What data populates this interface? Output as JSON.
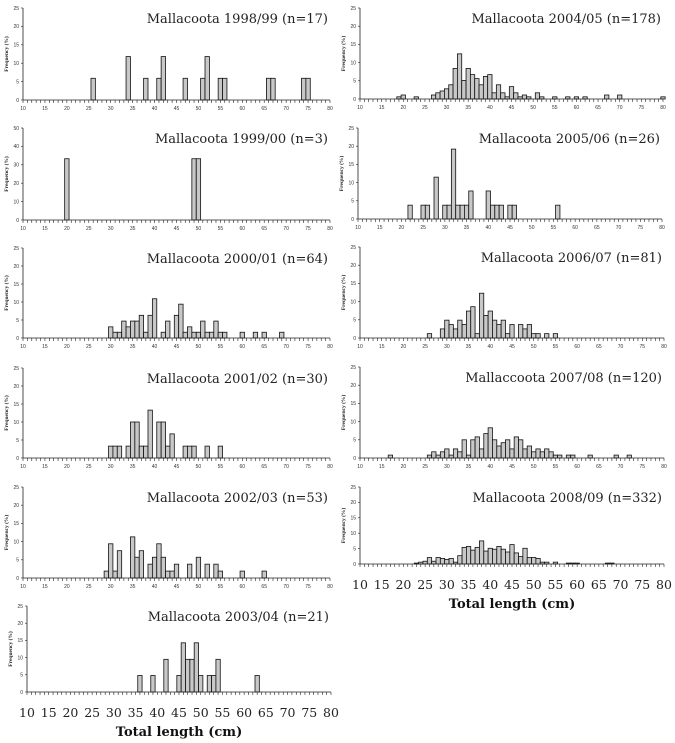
{
  "chart_data": [
    {
      "type": "bar",
      "title": "Mallacoota 1998/99 (n=17)",
      "ylabel": "Frequency (%)",
      "xlabel": "",
      "ylim": [
        0,
        25
      ],
      "yticks": [
        0,
        5,
        10,
        15,
        20,
        25
      ],
      "xlim": [
        10,
        80
      ],
      "xticks": [
        10,
        15,
        20,
        25,
        30,
        35,
        40,
        45,
        50,
        55,
        60,
        65,
        70,
        75,
        80
      ],
      "grid": false,
      "x": [
        26,
        34,
        38,
        41,
        42,
        47,
        51,
        52,
        55,
        56,
        66,
        67,
        74,
        75
      ],
      "values": [
        5.9,
        11.8,
        5.9,
        5.9,
        11.8,
        5.9,
        5.9,
        11.8,
        5.9,
        5.9,
        5.9,
        5.9,
        5.9,
        5.9
      ]
    },
    {
      "type": "bar",
      "title": "Mallacoota 1999/00 (n=3)",
      "ylabel": "Frequency (%)",
      "xlabel": "",
      "ylim": [
        0,
        50
      ],
      "yticks": [
        0,
        10,
        20,
        30,
        40,
        50
      ],
      "xlim": [
        10,
        80
      ],
      "xticks": [
        10,
        15,
        20,
        25,
        30,
        35,
        40,
        45,
        50,
        55,
        60,
        65,
        70,
        75,
        80
      ],
      "grid": false,
      "x": [
        20,
        49,
        50
      ],
      "values": [
        33.3,
        33.3,
        33.3
      ]
    },
    {
      "type": "bar",
      "title": "Mallacoota 2000/01 (n=64)",
      "ylabel": "Frequency (%)",
      "xlabel": "",
      "ylim": [
        0,
        25
      ],
      "yticks": [
        0,
        5,
        10,
        15,
        20,
        25
      ],
      "xlim": [
        10,
        80
      ],
      "xticks": [
        10,
        15,
        20,
        25,
        30,
        35,
        40,
        45,
        50,
        55,
        60,
        65,
        70,
        75,
        80
      ],
      "grid": false,
      "x": [
        30,
        31,
        32,
        33,
        34,
        35,
        36,
        37,
        38,
        39,
        40,
        42,
        43,
        45,
        46,
        47,
        48,
        49,
        50,
        51,
        52,
        53,
        54,
        55,
        56,
        60,
        63,
        65,
        69
      ],
      "values": [
        3.1,
        1.6,
        1.6,
        4.7,
        3.1,
        4.7,
        4.7,
        6.3,
        1.6,
        6.3,
        10.9,
        1.6,
        4.7,
        6.3,
        9.4,
        1.6,
        3.1,
        1.6,
        1.6,
        4.7,
        1.6,
        1.6,
        4.7,
        1.6,
        1.6,
        1.6,
        1.6,
        1.6,
        1.6
      ]
    },
    {
      "type": "bar",
      "title": "Mallacoota 2001/02 (n=30)",
      "ylabel": "Frequency (%)",
      "xlabel": "",
      "ylim": [
        0,
        25
      ],
      "yticks": [
        0,
        5,
        10,
        15,
        20,
        25
      ],
      "xlim": [
        10,
        80
      ],
      "xticks": [
        10,
        15,
        20,
        25,
        30,
        35,
        40,
        45,
        50,
        55,
        60,
        65,
        70,
        75,
        80
      ],
      "grid": false,
      "x": [
        30,
        31,
        32,
        34,
        35,
        36,
        37,
        38,
        39,
        41,
        42,
        43,
        44,
        47,
        48,
        49,
        52,
        55
      ],
      "values": [
        3.3,
        3.3,
        3.3,
        3.3,
        10,
        10,
        3.3,
        3.3,
        13.3,
        10,
        10,
        3.3,
        6.7,
        3.3,
        3.3,
        3.3,
        3.3,
        3.3
      ]
    },
    {
      "type": "bar",
      "title": "Mallacoota 2002/03 (n=53)",
      "ylabel": "Frequency (%)",
      "xlabel": "",
      "ylim": [
        0,
        25
      ],
      "yticks": [
        0,
        5,
        10,
        15,
        20,
        25
      ],
      "xlim": [
        10,
        80
      ],
      "xticks": [
        10,
        15,
        20,
        25,
        30,
        35,
        40,
        45,
        50,
        55,
        60,
        65,
        70,
        75,
        80
      ],
      "grid": false,
      "x": [
        29,
        30,
        31,
        32,
        35,
        36,
        37,
        39,
        40,
        41,
        42,
        43,
        44,
        45,
        48,
        50,
        52,
        54,
        55,
        60,
        65
      ],
      "values": [
        1.9,
        9.4,
        1.9,
        7.5,
        11.3,
        5.7,
        7.5,
        3.8,
        5.7,
        9.4,
        5.7,
        1.9,
        1.9,
        3.8,
        3.8,
        5.7,
        3.8,
        3.8,
        1.9,
        1.9,
        1.9
      ]
    },
    {
      "type": "bar",
      "title": "Mallacoota 2003/04 (n=21)",
      "ylabel": "Frequency (%)",
      "xlabel": "Total length (cm)",
      "ylim": [
        0,
        25
      ],
      "yticks": [
        0,
        5,
        10,
        15,
        20,
        25
      ],
      "xlim": [
        10,
        80
      ],
      "xticks": [
        10,
        15,
        20,
        25,
        30,
        35,
        40,
        45,
        50,
        55,
        60,
        65,
        70,
        75,
        80
      ],
      "grid": false,
      "x": [
        36,
        39,
        42,
        45,
        46,
        47,
        48,
        49,
        50,
        52,
        53,
        54,
        63
      ],
      "values": [
        4.8,
        4.8,
        9.5,
        4.8,
        14.3,
        9.5,
        9.5,
        14.3,
        4.8,
        4.8,
        4.8,
        9.5,
        4.8
      ]
    },
    {
      "type": "bar",
      "title": "Mallacoota 2004/05 (n=178)",
      "ylabel": "Frequency (%)",
      "xlabel": "",
      "ylim": [
        0,
        25
      ],
      "yticks": [
        0,
        5,
        10,
        15,
        20,
        25
      ],
      "xlim": [
        10,
        80
      ],
      "xticks": [
        10,
        15,
        20,
        25,
        30,
        35,
        40,
        45,
        50,
        55,
        60,
        65,
        70,
        75,
        80
      ],
      "grid": false,
      "x": [
        19,
        20,
        23,
        27,
        28,
        29,
        30,
        31,
        32,
        33,
        34,
        35,
        36,
        37,
        38,
        39,
        40,
        41,
        42,
        43,
        44,
        45,
        46,
        47,
        48,
        49,
        51,
        52,
        55,
        58,
        60,
        62,
        67,
        70,
        80
      ],
      "values": [
        0.6,
        1.1,
        0.6,
        1.1,
        1.7,
        2.2,
        2.8,
        3.9,
        8.4,
        12.4,
        5.1,
        8.4,
        6.7,
        5.6,
        3.9,
        6.2,
        6.7,
        1.7,
        3.9,
        1.7,
        0.6,
        3.4,
        1.7,
        0.6,
        1.1,
        0.6,
        1.7,
        0.6,
        0.6,
        0.6,
        0.6,
        0.6,
        1.1,
        1.1,
        0.6
      ]
    },
    {
      "type": "bar",
      "title": "Mallacoota 2005/06 (n=26)",
      "ylabel": "Frequency (%)",
      "xlabel": "",
      "ylim": [
        0,
        25
      ],
      "yticks": [
        0,
        5,
        10,
        15,
        20,
        25
      ],
      "xlim": [
        10,
        80
      ],
      "xticks": [
        10,
        15,
        20,
        25,
        30,
        35,
        40,
        45,
        50,
        55,
        60,
        65,
        70,
        75,
        80
      ],
      "grid": false,
      "x": [
        22,
        25,
        26,
        28,
        30,
        31,
        32,
        33,
        34,
        35,
        36,
        40,
        41,
        42,
        43,
        45,
        46,
        56
      ],
      "values": [
        3.8,
        3.8,
        3.8,
        11.5,
        3.8,
        3.8,
        19.2,
        3.8,
        3.8,
        3.8,
        7.7,
        7.7,
        3.8,
        3.8,
        3.8,
        3.8,
        3.8,
        3.8
      ]
    },
    {
      "type": "bar",
      "title": "Mallacoota 2006/07 (n=81)",
      "ylabel": "Frequency (%)",
      "xlabel": "",
      "ylim": [
        0,
        25
      ],
      "yticks": [
        0,
        5,
        10,
        15,
        20,
        25
      ],
      "xlim": [
        10,
        80
      ],
      "xticks": [
        10,
        15,
        20,
        25,
        30,
        35,
        40,
        45,
        50,
        55,
        60,
        65,
        70,
        75,
        80
      ],
      "grid": false,
      "x": [
        26,
        29,
        30,
        31,
        32,
        33,
        34,
        35,
        36,
        37,
        38,
        39,
        40,
        41,
        42,
        43,
        44,
        45,
        47,
        48,
        49,
        50,
        51,
        53,
        55
      ],
      "values": [
        1.2,
        2.5,
        4.9,
        3.7,
        2.5,
        4.9,
        3.7,
        7.4,
        8.6,
        1.2,
        12.3,
        6.2,
        7.4,
        4.9,
        3.7,
        4.9,
        1.2,
        3.7,
        3.7,
        2.5,
        3.7,
        1.2,
        1.2,
        1.2,
        1.2
      ]
    },
    {
      "type": "bar",
      "title": "Mallaccoota 2007/08 (n=120)",
      "ylabel": "Frequency (%)",
      "xlabel": "",
      "ylim": [
        0,
        25
      ],
      "yticks": [
        0,
        5,
        10,
        15,
        20,
        25
      ],
      "xlim": [
        10,
        80
      ],
      "xticks": [
        10,
        15,
        20,
        25,
        30,
        35,
        40,
        45,
        50,
        55,
        60,
        65,
        70,
        75,
        80
      ],
      "grid": false,
      "x": [
        17,
        26,
        27,
        28,
        29,
        30,
        31,
        32,
        33,
        34,
        35,
        36,
        37,
        38,
        39,
        40,
        41,
        42,
        43,
        44,
        45,
        46,
        47,
        48,
        49,
        50,
        51,
        52,
        53,
        54,
        55,
        56,
        58,
        59,
        63,
        69,
        72
      ],
      "values": [
        0.8,
        0.8,
        1.7,
        0.8,
        1.7,
        2.5,
        0.8,
        2.5,
        1.7,
        5.0,
        0.8,
        5.0,
        5.8,
        2.5,
        6.7,
        8.3,
        5.0,
        3.3,
        4.2,
        5.0,
        2.5,
        5.8,
        5.0,
        2.5,
        3.3,
        1.7,
        2.5,
        1.7,
        2.5,
        1.7,
        0.8,
        0.8,
        0.8,
        0.8,
        0.8,
        0.8,
        0.8
      ]
    },
    {
      "type": "bar",
      "title": "Mallacoota 2008/09 (n=332)",
      "ylabel": "Frequency (%)",
      "xlabel": "Total length (cm)",
      "ylim": [
        0,
        25
      ],
      "yticks": [
        0,
        5,
        10,
        15,
        20,
        25
      ],
      "xlim": [
        10,
        80
      ],
      "xticks": [
        10,
        15,
        20,
        25,
        30,
        35,
        40,
        45,
        50,
        55,
        60,
        65,
        70,
        75,
        80
      ],
      "grid": false,
      "x": [
        23,
        24,
        25,
        26,
        27,
        28,
        29,
        30,
        31,
        32,
        33,
        34,
        35,
        36,
        37,
        38,
        39,
        40,
        41,
        42,
        43,
        44,
        45,
        46,
        47,
        48,
        49,
        50,
        51,
        52,
        53,
        55,
        58,
        59,
        60,
        67,
        68
      ],
      "values": [
        0.3,
        0.6,
        0.9,
        2.1,
        0.9,
        2.1,
        1.8,
        1.5,
        1.8,
        0.6,
        2.7,
        5.4,
        5.7,
        4.5,
        5.4,
        7.5,
        4.2,
        5.1,
        4.8,
        5.7,
        4.8,
        3.9,
        6.3,
        3.6,
        2.4,
        5.1,
        2.1,
        2.1,
        1.8,
        0.6,
        0.6,
        0.6,
        0.3,
        0.3,
        0.3,
        0.3,
        0.3
      ]
    }
  ]
}
